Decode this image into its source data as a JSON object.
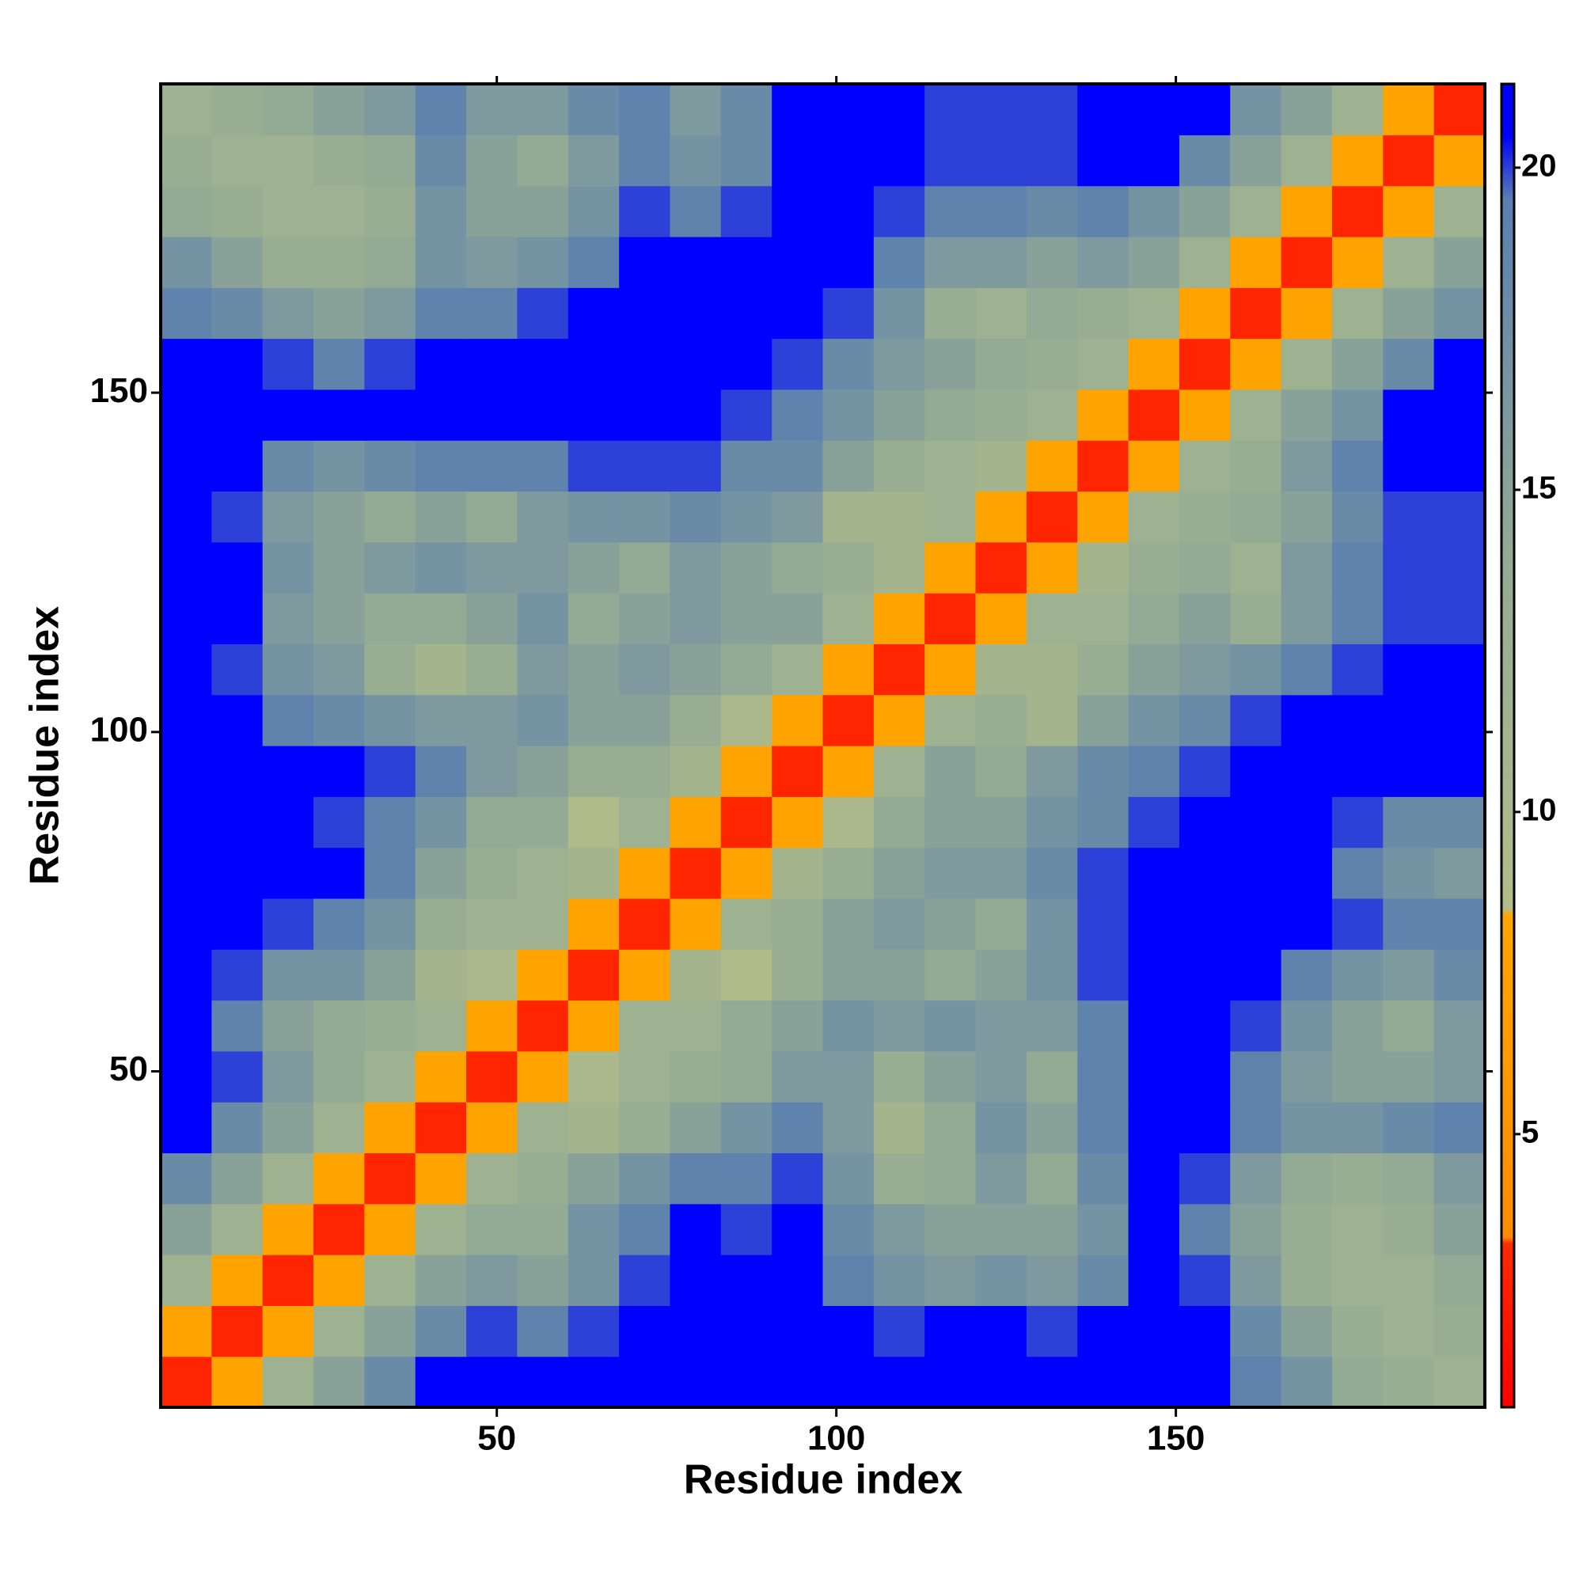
{
  "chart_data": {
    "type": "heatmap",
    "x_label": "Residue index",
    "y_label": "Residue index",
    "x": [
      4.25,
      11.75,
      19.25,
      26.75,
      34.25,
      41.75,
      49.25,
      56.75,
      64.25,
      71.75,
      79.25,
      86.75,
      94.25,
      101.75,
      109.25,
      116.75,
      124.25,
      131.75,
      139.25,
      146.75,
      154.25,
      161.75,
      169.25,
      176.75,
      184.25,
      191.75
    ],
    "y": [
      4.25,
      11.75,
      19.25,
      26.75,
      34.25,
      41.75,
      49.25,
      56.75,
      64.25,
      71.75,
      79.25,
      86.75,
      94.25,
      101.75,
      109.25,
      116.75,
      124.25,
      131.75,
      139.25,
      146.75,
      154.25,
      161.75,
      169.25,
      176.75,
      184.25,
      191.75
    ],
    "values": [
      [
        3,
        8,
        12,
        15,
        18,
        21,
        21,
        21,
        21,
        21,
        21,
        21,
        21,
        21,
        21,
        21,
        21,
        21,
        21,
        21,
        21,
        19,
        17,
        14,
        13,
        12
      ],
      [
        8,
        3,
        8,
        12,
        15,
        18,
        20,
        19,
        20,
        21,
        21,
        21,
        21,
        21,
        20,
        21,
        21,
        20,
        21,
        21,
        21,
        18,
        15,
        13,
        12,
        13
      ],
      [
        12,
        8,
        3,
        8,
        12,
        15,
        16,
        15,
        17,
        20,
        21,
        21,
        21,
        19,
        17,
        16,
        17,
        16,
        18,
        21,
        20,
        16,
        13,
        12,
        12,
        14
      ],
      [
        15,
        12,
        8,
        3,
        8,
        12,
        14,
        14,
        17,
        19,
        21,
        20,
        21,
        18,
        16,
        15,
        15,
        15,
        17,
        21,
        19,
        15,
        13,
        12,
        13,
        15
      ],
      [
        18,
        15,
        12,
        8,
        3,
        8,
        12,
        13,
        15,
        17,
        19,
        19,
        20,
        17,
        13,
        14,
        16,
        14,
        18,
        21,
        20,
        16,
        14,
        13,
        14,
        16
      ],
      [
        21,
        18,
        15,
        12,
        8,
        3,
        8,
        12,
        11,
        13,
        15,
        17,
        19,
        16,
        11,
        14,
        17,
        15,
        19,
        21,
        21,
        19,
        17,
        17,
        18,
        19
      ],
      [
        21,
        20,
        16,
        14,
        12,
        8,
        3,
        8,
        10,
        12,
        13,
        14,
        16,
        16,
        13,
        15,
        16,
        14,
        19,
        21,
        21,
        19,
        16,
        15,
        15,
        16
      ],
      [
        21,
        19,
        15,
        14,
        13,
        12,
        8,
        3,
        8,
        12,
        12,
        14,
        15,
        17,
        16,
        17,
        16,
        16,
        19,
        21,
        21,
        20,
        17,
        15,
        14,
        16
      ],
      [
        21,
        20,
        17,
        17,
        15,
        11,
        10,
        8,
        3,
        8,
        11,
        9,
        13,
        15,
        15,
        14,
        15,
        17,
        20,
        21,
        21,
        21,
        19,
        17,
        16,
        18
      ],
      [
        21,
        21,
        20,
        19,
        17,
        13,
        12,
        12,
        8,
        3,
        8,
        12,
        13,
        15,
        16,
        15,
        14,
        17,
        20,
        21,
        21,
        21,
        21,
        20,
        19,
        19
      ],
      [
        21,
        21,
        21,
        21,
        19,
        15,
        13,
        12,
        11,
        8,
        3,
        8,
        11,
        13,
        15,
        16,
        16,
        18,
        20,
        21,
        21,
        21,
        21,
        19,
        17,
        16
      ],
      [
        21,
        21,
        21,
        20,
        19,
        17,
        14,
        14,
        9,
        12,
        8,
        3,
        8,
        10,
        14,
        15,
        15,
        17,
        18,
        20,
        21,
        21,
        21,
        20,
        18,
        18
      ],
      [
        21,
        21,
        21,
        21,
        20,
        19,
        16,
        15,
        13,
        13,
        11,
        8,
        3,
        8,
        12,
        15,
        14,
        16,
        18,
        19,
        20,
        21,
        21,
        21,
        21,
        21
      ],
      [
        21,
        21,
        19,
        18,
        17,
        16,
        16,
        17,
        15,
        15,
        13,
        10,
        8,
        3,
        8,
        12,
        13,
        11,
        15,
        17,
        18,
        20,
        21,
        21,
        21,
        21
      ],
      [
        21,
        20,
        17,
        16,
        13,
        11,
        13,
        16,
        15,
        16,
        15,
        14,
        12,
        8,
        3,
        8,
        11,
        11,
        13,
        15,
        16,
        17,
        19,
        20,
        21,
        21
      ],
      [
        21,
        21,
        16,
        15,
        14,
        14,
        15,
        17,
        14,
        15,
        16,
        15,
        15,
        12,
        8,
        3,
        8,
        12,
        12,
        14,
        15,
        13,
        16,
        19,
        20,
        20
      ],
      [
        21,
        21,
        17,
        15,
        16,
        17,
        16,
        16,
        15,
        14,
        16,
        15,
        14,
        13,
        11,
        8,
        3,
        8,
        11,
        13,
        14,
        12,
        16,
        19,
        20,
        20
      ],
      [
        21,
        20,
        16,
        15,
        14,
        15,
        14,
        16,
        17,
        17,
        18,
        17,
        16,
        11,
        11,
        12,
        8,
        3,
        8,
        12,
        13,
        14,
        15,
        18,
        20,
        20
      ],
      [
        21,
        21,
        18,
        17,
        18,
        19,
        19,
        19,
        20,
        20,
        20,
        18,
        18,
        15,
        13,
        12,
        11,
        8,
        3,
        8,
        12,
        13,
        16,
        19,
        21,
        21
      ],
      [
        21,
        21,
        21,
        21,
        21,
        21,
        21,
        21,
        21,
        21,
        21,
        20,
        19,
        17,
        15,
        14,
        13,
        12,
        8,
        3,
        8,
        12,
        15,
        17,
        21,
        21
      ],
      [
        21,
        21,
        20,
        19,
        20,
        21,
        21,
        21,
        21,
        21,
        21,
        21,
        20,
        18,
        16,
        15,
        14,
        13,
        12,
        8,
        3,
        8,
        12,
        15,
        18,
        21
      ],
      [
        19,
        18,
        16,
        15,
        16,
        19,
        19,
        20,
        21,
        21,
        21,
        21,
        21,
        20,
        17,
        13,
        12,
        14,
        13,
        12,
        8,
        3,
        8,
        12,
        15,
        17
      ],
      [
        17,
        15,
        13,
        13,
        14,
        17,
        16,
        17,
        19,
        21,
        21,
        21,
        21,
        21,
        19,
        16,
        16,
        15,
        16,
        15,
        12,
        8,
        3,
        8,
        12,
        15
      ],
      [
        14,
        13,
        12,
        12,
        13,
        17,
        15,
        15,
        17,
        20,
        19,
        20,
        21,
        21,
        20,
        19,
        19,
        18,
        19,
        17,
        15,
        12,
        8,
        3,
        8,
        12
      ],
      [
        13,
        12,
        12,
        13,
        14,
        18,
        15,
        14,
        16,
        19,
        17,
        18,
        21,
        21,
        21,
        20,
        20,
        20,
        21,
        21,
        18,
        15,
        12,
        8,
        3,
        8
      ],
      [
        12,
        13,
        14,
        15,
        16,
        19,
        16,
        16,
        18,
        19,
        16,
        18,
        21,
        21,
        21,
        20,
        20,
        20,
        21,
        21,
        21,
        17,
        15,
        12,
        8,
        3
      ]
    ],
    "xlim": [
      0.5,
      195.5
    ],
    "ylim": [
      0.5,
      195.5
    ],
    "xticks": [
      50,
      100,
      150
    ],
    "yticks": [
      50,
      100,
      150
    ],
    "clim": [
      0.76,
      21.3
    ],
    "cticks": [
      5,
      10,
      15,
      20
    ],
    "colorscale": [
      {
        "value": 0.76,
        "color": "#ff0000"
      },
      {
        "value": 3.3,
        "color": "#ff2a00"
      },
      {
        "value": 3.4,
        "color": "#ff8c00"
      },
      {
        "value": 8.4,
        "color": "#ffa500"
      },
      {
        "value": 8.5,
        "color": "#b2bd88"
      },
      {
        "value": 14,
        "color": "#93aa94"
      },
      {
        "value": 19.5,
        "color": "#5a7fb0"
      },
      {
        "value": 20.5,
        "color": "#0000ff"
      },
      {
        "value": 21.3,
        "color": "#0000ff"
      }
    ]
  }
}
